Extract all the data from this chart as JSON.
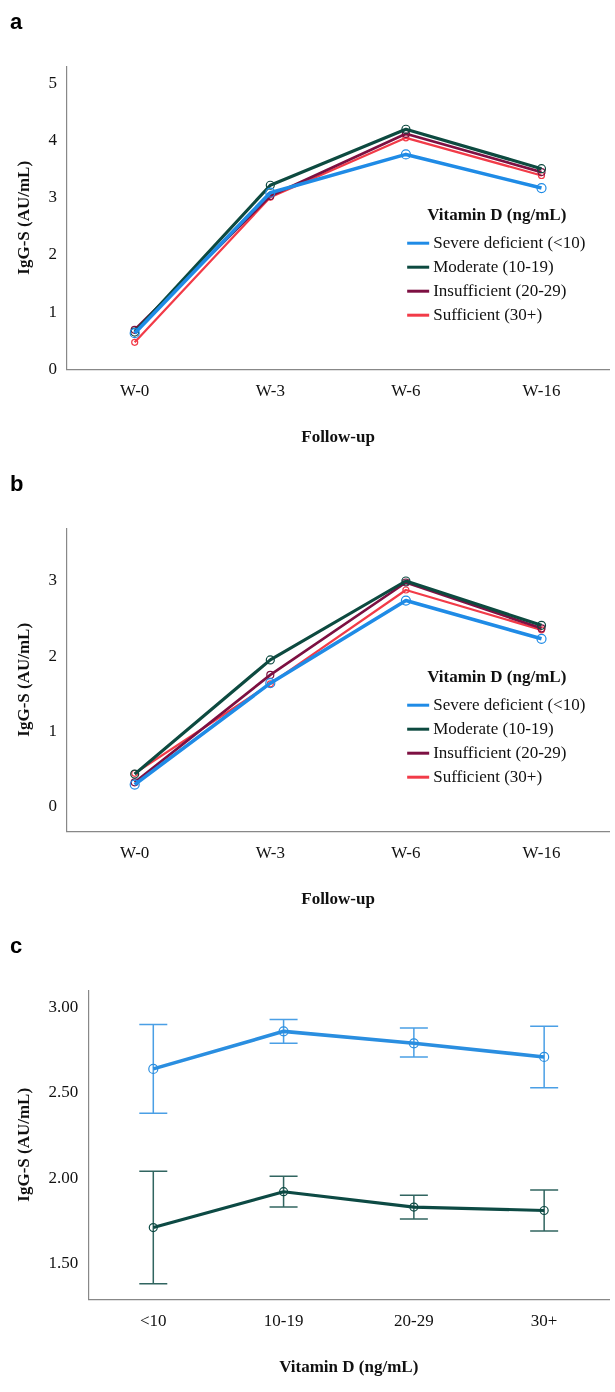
{
  "chart_data": [
    {
      "type": "line",
      "title": "a",
      "xlabel": "Follow-up",
      "ylabel": "IgG-S (AU/mL)",
      "legend_title": "Vitamin D (ng/mL)",
      "categories": [
        "W-0",
        "W-3",
        "W-6",
        "W-16"
      ],
      "ylim": [
        0,
        5.3
      ],
      "yticks": [
        0,
        1,
        2,
        3,
        4,
        5
      ],
      "grid": false,
      "legend": "bottom right",
      "marker": "circle",
      "line_style": "solid",
      "series": [
        {
          "name": "Severe deficient (<10)",
          "color": "#1f8be6",
          "values": [
            0.63,
            3.09,
            3.76,
            3.17
          ]
        },
        {
          "name": "Moderate (10-19)",
          "color": "#0d4a40",
          "values": [
            0.65,
            3.22,
            4.2,
            3.51
          ]
        },
        {
          "name": "Insufficient (20-29)",
          "color": "#7d1042",
          "values": [
            0.69,
            3.03,
            4.12,
            3.45
          ]
        },
        {
          "name": "Sufficient (30+)",
          "color": "#f23b48",
          "values": [
            0.47,
            3.01,
            4.05,
            3.39
          ]
        }
      ]
    },
    {
      "type": "line",
      "title": "b",
      "xlabel": "Follow-up",
      "ylabel": "IgG-S (AU/mL)",
      "legend_title": "Vitamin D (ng/mL)",
      "categories": [
        "W-0",
        "W-3",
        "W-6",
        "W-16"
      ],
      "ylim": [
        -0.33,
        3.7
      ],
      "yticks": [
        0,
        1,
        2,
        3
      ],
      "grid": false,
      "legend": "bottom right",
      "marker": "circle",
      "line_style": "solid",
      "series": [
        {
          "name": "Severe deficient (<10)",
          "color": "#1f8be6",
          "values": [
            0.29,
            1.64,
            2.74,
            2.23
          ]
        },
        {
          "name": "Moderate (10-19)",
          "color": "#0d4a40",
          "values": [
            0.43,
            1.95,
            3.0,
            2.41
          ]
        },
        {
          "name": "Insufficient (20-29)",
          "color": "#7d1042",
          "values": [
            0.32,
            1.75,
            2.98,
            2.37
          ]
        },
        {
          "name": "Sufficient (30+)",
          "color": "#f23b48",
          "values": [
            0.44,
            1.63,
            2.88,
            2.35
          ]
        }
      ]
    },
    {
      "type": "line",
      "title": "c",
      "xlabel": "Vitamin D (ng/mL)",
      "ylabel": "IgG-S (AU/mL)",
      "categories": [
        "<10",
        "10-19",
        "20-29",
        "30+"
      ],
      "ylim": [
        1.29,
        3.1
      ],
      "yticks": [
        {
          "value": 1.5,
          "label": "1.50"
        },
        {
          "value": 2,
          "label": "2.00"
        },
        {
          "value": 2.5,
          "label": "2.50"
        },
        {
          "value": 3,
          "label": "3.00"
        }
      ],
      "grid": false,
      "marker": "circle",
      "line_style": "solid",
      "series": [
        {
          "color": "#2a8ee0",
          "values": [
            2.64,
            2.86,
            2.79,
            2.71
          ],
          "errors": [
            [
              2.38,
              2.9
            ],
            [
              2.79,
              2.93
            ],
            [
              2.71,
              2.88
            ],
            [
              2.53,
              2.89
            ]
          ]
        },
        {
          "color": "#0d4a44",
          "values": [
            1.71,
            1.92,
            1.83,
            1.81
          ],
          "errors": [
            [
              1.38,
              2.04
            ],
            [
              1.83,
              2.01
            ],
            [
              1.76,
              1.9
            ],
            [
              1.69,
              1.93
            ]
          ]
        }
      ]
    }
  ]
}
